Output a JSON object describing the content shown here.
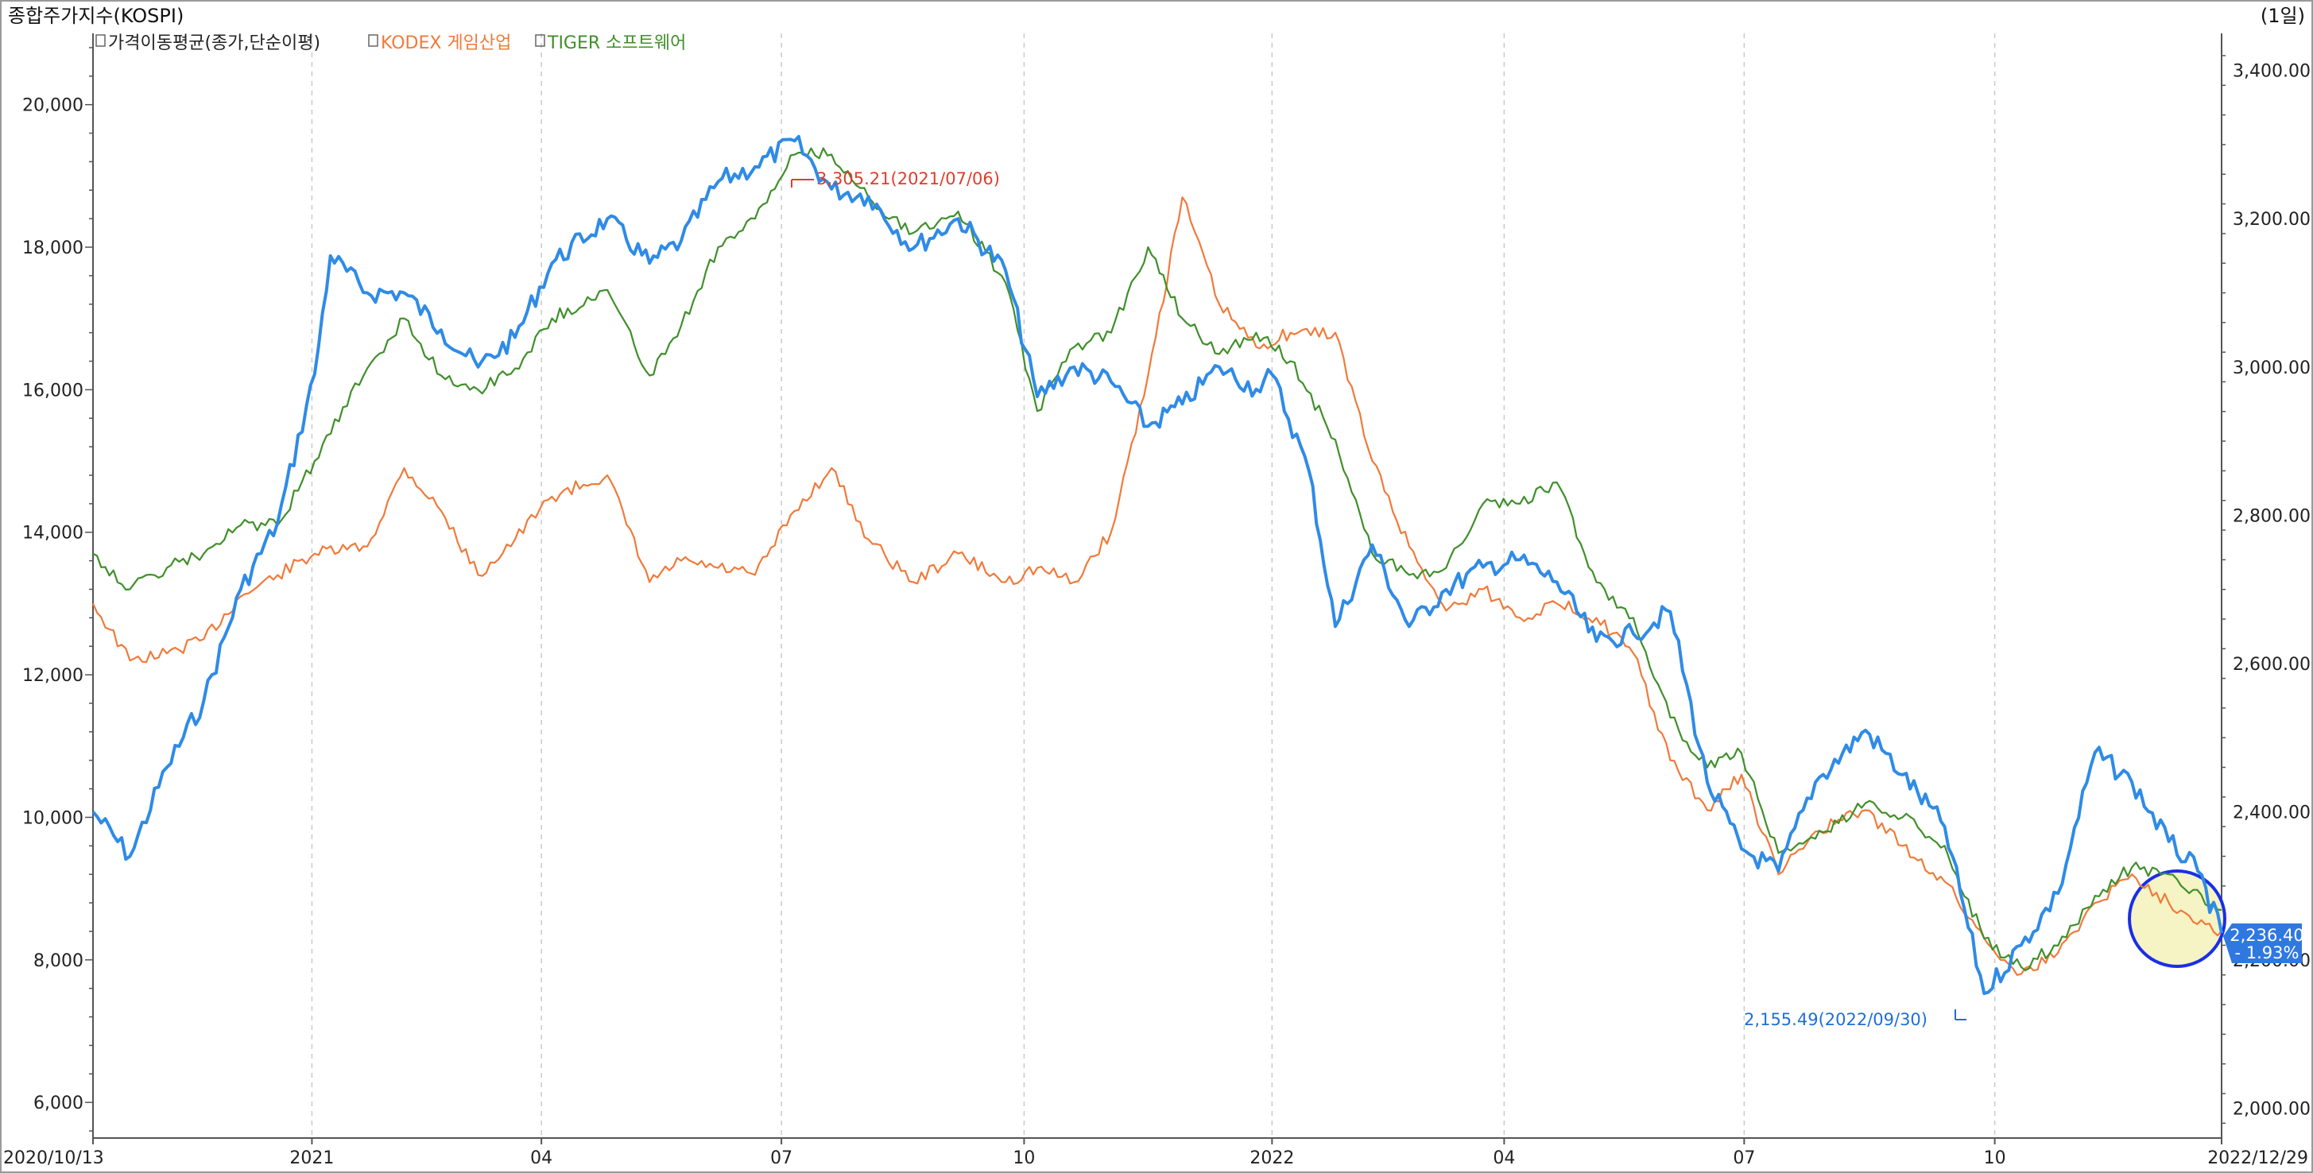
{
  "header": {
    "title": "종합주가지수(KOSPI)",
    "period": "(1일)"
  },
  "legend": [
    {
      "label": "가격이동평균(종가,단순이평)",
      "color": "#222222"
    },
    {
      "label": "KODEX 게임산업",
      "color": "#f07a3a"
    },
    {
      "label": "TIGER 소프트웨어",
      "color": "#3f8f2a"
    }
  ],
  "annotations": {
    "high": {
      "text": "3,305.21(2021/07/06)",
      "color": "#e03c2c"
    },
    "low": {
      "text": "2,155.49(2022/09/30)",
      "color": "#1f6fd6"
    }
  },
  "last_value": {
    "price": "2,236.40",
    "change": "- 1.93%",
    "color": "#2f78e0"
  },
  "colors": {
    "kospi": "#2f8be6",
    "kodex": "#f07a3a",
    "tiger": "#3f8f2a",
    "grid": "#c9c9c9",
    "highlight_circle": "#1a2fe6",
    "highlight_fill": "#f6f3c5"
  },
  "chart_data": {
    "type": "line",
    "x_tick_labels": [
      "2020/10/13",
      "2021",
      "04",
      "07",
      "10",
      "2022",
      "04",
      "07",
      "10",
      "2022/12/29"
    ],
    "left_axis": {
      "ylim": [
        5500,
        21000
      ],
      "ticks": [
        "6,000",
        "8,000",
        "10,000",
        "12,000",
        "14,000",
        "16,000",
        "18,000",
        "20,000"
      ]
    },
    "right_axis": {
      "ylim": [
        1960,
        3450
      ],
      "ticks": [
        "2,000.00",
        "2,200.00",
        "2,400.00",
        "2,600.00",
        "2,800.00",
        "3,000.00",
        "3,200.00",
        "3,400.00"
      ]
    },
    "series": [
      {
        "name": "종합주가지수(KOSPI)",
        "axis": "right",
        "x": [
          "2020-10-13",
          "2020-10-27",
          "2020-11-10",
          "2020-11-24",
          "2020-12-08",
          "2020-12-22",
          "2021-01-05",
          "2021-01-11",
          "2021-01-25",
          "2021-02-08",
          "2021-02-22",
          "2021-03-08",
          "2021-03-22",
          "2021-04-05",
          "2021-04-26",
          "2021-05-12",
          "2021-05-24",
          "2021-06-07",
          "2021-06-21",
          "2021-07-06",
          "2021-07-20",
          "2021-08-03",
          "2021-08-20",
          "2021-09-06",
          "2021-09-24",
          "2021-10-06",
          "2021-10-20",
          "2021-11-03",
          "2021-11-17",
          "2021-11-30",
          "2021-12-14",
          "2021-12-28",
          "2022-01-03",
          "2022-01-17",
          "2022-01-27",
          "2022-02-10",
          "2022-02-24",
          "2022-03-10",
          "2022-03-24",
          "2022-04-07",
          "2022-04-21",
          "2022-05-06",
          "2022-05-20",
          "2022-06-03",
          "2022-06-17",
          "2022-06-30",
          "2022-07-14",
          "2022-07-28",
          "2022-08-16",
          "2022-08-30",
          "2022-09-15",
          "2022-09-30",
          "2022-10-14",
          "2022-10-28",
          "2022-11-11",
          "2022-11-25",
          "2022-12-09",
          "2022-12-20",
          "2022-12-29"
        ],
        "values": [
          2400,
          2340,
          2460,
          2550,
          2700,
          2790,
          2990,
          3150,
          3100,
          3100,
          3050,
          3000,
          3040,
          3140,
          3200,
          3140,
          3170,
          3250,
          3270,
          3305,
          3240,
          3230,
          3160,
          3200,
          3130,
          2960,
          3000,
          2980,
          2920,
          2950,
          3000,
          2970,
          2990,
          2860,
          2650,
          2760,
          2650,
          2700,
          2730,
          2740,
          2710,
          2630,
          2640,
          2670,
          2440,
          2350,
          2320,
          2440,
          2510,
          2450,
          2380,
          2155,
          2220,
          2290,
          2480,
          2440,
          2360,
          2320,
          2236.4
        ]
      },
      {
        "name": "KODEX 게임산업",
        "axis": "left",
        "x": [
          "2020-10-13",
          "2020-10-27",
          "2020-11-10",
          "2020-11-24",
          "2020-12-08",
          "2020-12-22",
          "2021-01-05",
          "2021-01-25",
          "2021-02-08",
          "2021-02-22",
          "2021-03-08",
          "2021-03-22",
          "2021-04-05",
          "2021-04-26",
          "2021-05-12",
          "2021-05-24",
          "2021-06-07",
          "2021-06-21",
          "2021-07-06",
          "2021-07-20",
          "2021-08-03",
          "2021-08-20",
          "2021-09-06",
          "2021-09-24",
          "2021-10-06",
          "2021-10-20",
          "2021-11-03",
          "2021-11-17",
          "2021-11-30",
          "2021-12-14",
          "2021-12-28",
          "2022-01-10",
          "2022-01-27",
          "2022-02-10",
          "2022-02-24",
          "2022-03-10",
          "2022-03-24",
          "2022-04-07",
          "2022-04-21",
          "2022-05-06",
          "2022-05-20",
          "2022-06-03",
          "2022-06-17",
          "2022-06-30",
          "2022-07-14",
          "2022-07-28",
          "2022-08-16",
          "2022-08-30",
          "2022-09-15",
          "2022-09-30",
          "2022-10-14",
          "2022-10-28",
          "2022-11-11",
          "2022-11-25",
          "2022-12-09",
          "2022-12-29"
        ],
        "values": [
          13000,
          12200,
          12300,
          12500,
          13100,
          13400,
          13700,
          13800,
          14900,
          14300,
          13400,
          13900,
          14500,
          14800,
          13300,
          13600,
          13500,
          13400,
          14300,
          14900,
          13900,
          13300,
          13700,
          13300,
          13500,
          13300,
          14000,
          16200,
          18700,
          17200,
          16600,
          16800,
          16800,
          15000,
          13800,
          12900,
          13200,
          12800,
          13000,
          12800,
          12300,
          10800,
          10100,
          10600,
          9200,
          9800,
          10100,
          9600,
          9100,
          8300,
          7800,
          8100,
          8800,
          9200,
          8800,
          8400
        ]
      },
      {
        "name": "TIGER 소프트웨어",
        "axis": "left",
        "x": [
          "2020-10-13",
          "2020-10-27",
          "2020-11-10",
          "2020-11-24",
          "2020-12-08",
          "2020-12-22",
          "2021-01-05",
          "2021-01-25",
          "2021-02-08",
          "2021-02-22",
          "2021-03-08",
          "2021-03-22",
          "2021-04-05",
          "2021-04-26",
          "2021-05-12",
          "2021-05-24",
          "2021-06-07",
          "2021-06-21",
          "2021-07-06",
          "2021-07-20",
          "2021-08-03",
          "2021-08-20",
          "2021-09-06",
          "2021-09-24",
          "2021-10-06",
          "2021-10-20",
          "2021-11-03",
          "2021-11-17",
          "2021-11-30",
          "2021-12-14",
          "2021-12-28",
          "2022-01-10",
          "2022-01-27",
          "2022-02-10",
          "2022-02-24",
          "2022-03-10",
          "2022-03-24",
          "2022-04-07",
          "2022-04-21",
          "2022-05-06",
          "2022-05-20",
          "2022-06-03",
          "2022-06-17",
          "2022-06-30",
          "2022-07-14",
          "2022-07-28",
          "2022-08-16",
          "2022-08-30",
          "2022-09-15",
          "2022-09-30",
          "2022-10-14",
          "2022-10-28",
          "2022-11-11",
          "2022-11-25",
          "2022-12-09",
          "2022-12-29"
        ],
        "values": [
          13700,
          13200,
          13500,
          13700,
          14100,
          14100,
          15000,
          16300,
          17000,
          16200,
          16000,
          16300,
          17000,
          17400,
          16200,
          16900,
          18000,
          18400,
          19300,
          19300,
          18700,
          18200,
          18500,
          17500,
          15700,
          16600,
          16800,
          18000,
          17000,
          16500,
          16800,
          16400,
          15300,
          13700,
          13400,
          13500,
          14400,
          14400,
          14700,
          13300,
          12800,
          11400,
          10700,
          10900,
          9500,
          9700,
          10200,
          10000,
          9600,
          8300,
          7900,
          8200,
          8900,
          9300,
          9200,
          8700
        ]
      }
    ]
  }
}
